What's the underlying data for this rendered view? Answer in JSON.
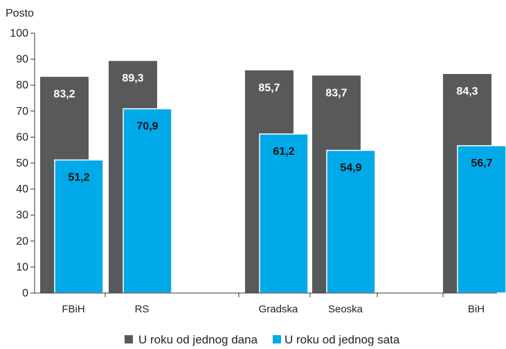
{
  "chart_data": {
    "type": "bar",
    "ylabel": "Posto",
    "ylim": [
      0,
      100
    ],
    "yticks": [
      0,
      10,
      20,
      30,
      40,
      50,
      60,
      70,
      80,
      90,
      100
    ],
    "categories": [
      "FBiH",
      "RS",
      "Gradska",
      "Seoska",
      "BiH"
    ],
    "series": [
      {
        "name": "U roku od jednog dana",
        "values": [
          83.2,
          89.3,
          85.7,
          83.7,
          84.3
        ],
        "labels": [
          "83,2",
          "89,3",
          "85,7",
          "83,7",
          "84,3"
        ],
        "color": "#58595b",
        "label_color": "#ffffff"
      },
      {
        "name": "U roku od jednog sata",
        "values": [
          51.2,
          70.9,
          61.2,
          54.9,
          56.7
        ],
        "labels": [
          "51,2",
          "70,9",
          "61,2",
          "54,9",
          "56,7"
        ],
        "color": "#00a9e8",
        "label_color": "#111111"
      }
    ],
    "legend_position": "bottom",
    "grid": false
  }
}
